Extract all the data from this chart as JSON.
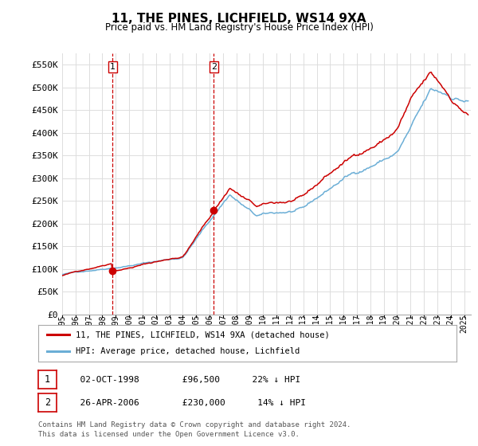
{
  "title": "11, THE PINES, LICHFIELD, WS14 9XA",
  "subtitle": "Price paid vs. HM Land Registry's House Price Index (HPI)",
  "x_start": 1995.0,
  "x_end": 2025.5,
  "y_min": 0,
  "y_max": 575000,
  "yticks": [
    0,
    50000,
    100000,
    150000,
    200000,
    250000,
    300000,
    350000,
    400000,
    450000,
    500000,
    550000
  ],
  "ytick_labels": [
    "£0",
    "£50K",
    "£100K",
    "£150K",
    "£200K",
    "£250K",
    "£300K",
    "£350K",
    "£400K",
    "£450K",
    "£500K",
    "£550K"
  ],
  "sale1_date": 1998.75,
  "sale1_price": 96500,
  "sale2_date": 2006.32,
  "sale2_price": 230000,
  "hpi_color": "#6baed6",
  "price_color": "#cc0000",
  "vline_color": "#cc0000",
  "grid_color": "#dddddd",
  "bg_color": "#ffffff",
  "legend_label1": "11, THE PINES, LICHFIELD, WS14 9XA (detached house)",
  "legend_label2": "HPI: Average price, detached house, Lichfield",
  "table_row1": [
    "1",
    "02-OCT-1998",
    "£96,500",
    "22% ↓ HPI"
  ],
  "table_row2": [
    "2",
    "26-APR-2006",
    "£230,000",
    "14% ↓ HPI"
  ],
  "footnote1": "Contains HM Land Registry data © Crown copyright and database right 2024.",
  "footnote2": "This data is licensed under the Open Government Licence v3.0.",
  "xtick_years": [
    1995,
    1996,
    1997,
    1998,
    1999,
    2000,
    2001,
    2002,
    2003,
    2004,
    2005,
    2006,
    2007,
    2008,
    2009,
    2010,
    2011,
    2012,
    2013,
    2014,
    2015,
    2016,
    2017,
    2018,
    2019,
    2020,
    2021,
    2022,
    2023,
    2024,
    2025
  ]
}
